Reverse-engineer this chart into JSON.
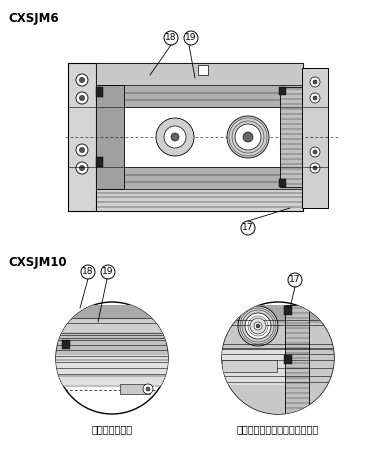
{
  "bg_color": "#ffffff",
  "line_color": "#000000",
  "gray_light": "#cccccc",
  "gray_mid": "#aaaaaa",
  "gray_dark": "#777777",
  "gray_body": "#b8b8b8",
  "title1": "CXSJM6",
  "title2": "CXSJM10",
  "label_left": "ロッドカバー部",
  "label_right": "ピストンロッドＢ側ピストン部"
}
